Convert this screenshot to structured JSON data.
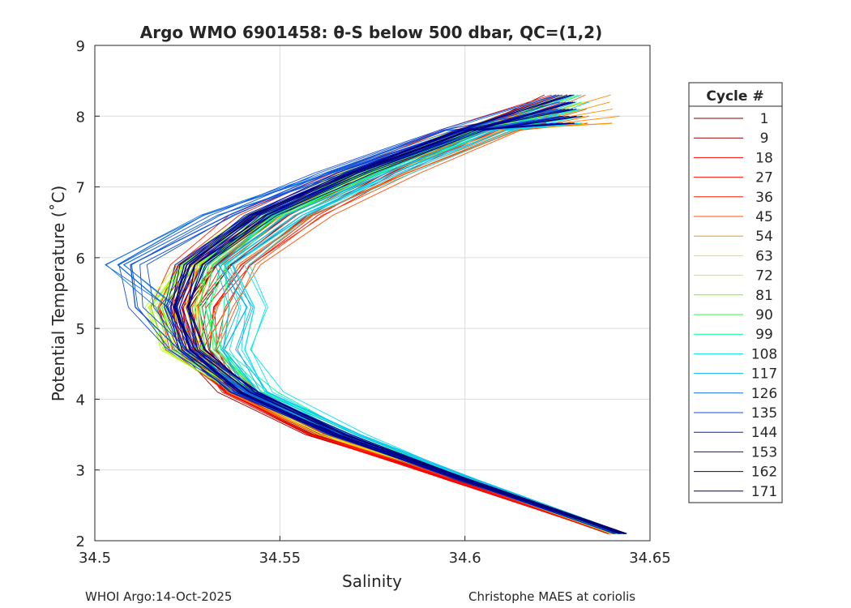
{
  "chart_data": {
    "type": "line",
    "title": "Argo WMO 6901458: θ-S below 500 dbar,  QC=(1,2)",
    "xlabel": "Salinity",
    "ylabel": "Potential Temperature (˚C)",
    "xlim": [
      34.5,
      34.65
    ],
    "ylim": [
      2,
      9
    ],
    "xticks": [
      "34.5",
      "34.55",
      "34.6",
      "34.65"
    ],
    "yticks": [
      "2",
      "3",
      "4",
      "5",
      "6",
      "7",
      "8",
      "9"
    ],
    "grid": true,
    "legend": {
      "title": "Cycle #",
      "placement": "right-outside"
    },
    "theta": [
      2.1,
      2.85,
      3.5,
      4.1,
      4.7,
      5.3,
      5.9,
      6.6,
      7.2,
      7.8,
      8.3
    ],
    "series": [
      {
        "name": "1",
        "color": "#800000",
        "salinity": [
          34.641,
          34.598,
          34.561,
          34.537,
          34.528,
          34.527,
          34.534,
          34.553,
          34.576,
          34.603,
          34.622
        ]
      },
      {
        "name": "9",
        "color": "#a00000",
        "salinity": [
          34.64,
          34.597,
          34.56,
          34.536,
          34.524,
          34.521,
          34.528,
          34.548,
          34.572,
          34.6,
          34.625
        ]
      },
      {
        "name": "18",
        "color": "#ff0000",
        "salinity": [
          34.641,
          34.597,
          34.561,
          34.538,
          34.53,
          34.531,
          34.54,
          34.558,
          34.58,
          34.606,
          34.628
        ]
      },
      {
        "name": "27",
        "color": "#ff1000",
        "salinity": [
          34.64,
          34.598,
          34.562,
          34.537,
          34.526,
          34.524,
          34.53,
          34.549,
          34.573,
          34.602,
          34.626
        ]
      },
      {
        "name": "36",
        "color": "#ff2000",
        "salinity": [
          34.641,
          34.599,
          34.562,
          34.538,
          34.522,
          34.518,
          34.522,
          34.54,
          34.566,
          34.596,
          34.624
        ]
      },
      {
        "name": "45",
        "color": "#ff5000",
        "salinity": [
          34.641,
          34.6,
          34.564,
          34.54,
          34.53,
          34.535,
          34.541,
          34.56,
          34.585,
          34.613,
          34.633
        ]
      },
      {
        "name": "54",
        "color": "#ff9000",
        "salinity": [
          34.642,
          34.6,
          34.564,
          34.539,
          34.527,
          34.524,
          34.529,
          34.548,
          34.575,
          34.608,
          34.64
        ]
      },
      {
        "name": "63",
        "color": "#ffe000",
        "salinity": [
          34.641,
          34.6,
          34.564,
          34.539,
          34.526,
          34.523,
          34.527,
          34.546,
          34.572,
          34.603,
          34.632
        ]
      },
      {
        "name": "72",
        "color": "#c0ff00",
        "salinity": [
          34.641,
          34.601,
          34.565,
          34.54,
          34.52,
          34.515,
          34.524,
          34.544,
          34.57,
          34.601,
          34.628
        ]
      },
      {
        "name": "81",
        "color": "#70ff00",
        "salinity": [
          34.641,
          34.601,
          34.566,
          34.541,
          34.522,
          34.517,
          34.525,
          34.545,
          34.571,
          34.602,
          34.628
        ]
      },
      {
        "name": "90",
        "color": "#20ff40",
        "salinity": [
          34.641,
          34.601,
          34.566,
          34.542,
          34.53,
          34.528,
          34.531,
          34.548,
          34.573,
          34.603,
          34.63
        ]
      },
      {
        "name": "99",
        "color": "#00ff90",
        "salinity": [
          34.642,
          34.602,
          34.568,
          34.545,
          34.533,
          34.532,
          34.533,
          34.55,
          34.576,
          34.605,
          34.631
        ]
      },
      {
        "name": "108",
        "color": "#00e8f0",
        "salinity": [
          34.642,
          34.603,
          34.57,
          34.547,
          34.54,
          34.543,
          34.538,
          34.556,
          34.582,
          34.61,
          34.632
        ]
      },
      {
        "name": "117",
        "color": "#10b0f0",
        "salinity": [
          34.642,
          34.602,
          34.568,
          34.544,
          34.536,
          34.54,
          34.534,
          34.552,
          34.578,
          34.607,
          34.63
        ]
      },
      {
        "name": "126",
        "color": "#1070e0",
        "salinity": [
          34.642,
          34.6,
          34.565,
          34.54,
          34.525,
          34.52,
          34.505,
          34.53,
          34.565,
          34.598,
          34.626
        ]
      },
      {
        "name": "135",
        "color": "#1050e0",
        "salinity": [
          34.642,
          34.6,
          34.565,
          34.54,
          34.522,
          34.512,
          34.51,
          34.535,
          34.563,
          34.596,
          34.625
        ]
      },
      {
        "name": "144",
        "color": "#0020d0",
        "salinity": [
          34.642,
          34.6,
          34.565,
          34.54,
          34.525,
          34.521,
          34.525,
          34.543,
          34.569,
          34.6,
          34.627
        ]
      },
      {
        "name": "153",
        "color": "#0010c0",
        "salinity": [
          34.642,
          34.6,
          34.565,
          34.54,
          34.526,
          34.522,
          34.526,
          34.544,
          34.57,
          34.6,
          34.628
        ]
      },
      {
        "name": "162",
        "color": "#000090",
        "salinity": [
          34.642,
          34.6,
          34.565,
          34.54,
          34.527,
          34.523,
          34.527,
          34.545,
          34.57,
          34.601,
          34.63
        ]
      },
      {
        "name": "171",
        "color": "#000070",
        "salinity": [
          34.643,
          34.601,
          34.566,
          34.541,
          34.527,
          34.522,
          34.526,
          34.545,
          34.571,
          34.601,
          34.629
        ]
      }
    ]
  },
  "footer": {
    "left": "WHOI Argo:14-Oct-2025",
    "right": "Christophe MAES at coriolis"
  }
}
